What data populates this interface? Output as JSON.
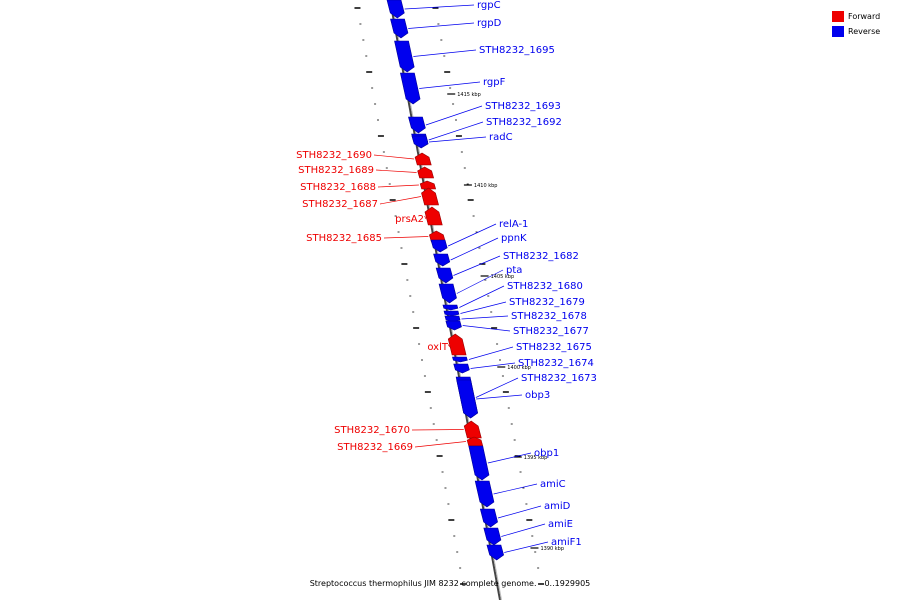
{
  "caption": "Streptococcus thermophilus JIM 8232 complete genome. - 0..1929905",
  "legend": {
    "forward": {
      "label": "Forward",
      "color": "#ee0000"
    },
    "reverse": {
      "label": "Reverse",
      "color": "#0000ee"
    }
  },
  "scale_ticks": [
    "1415 kbp",
    "1410 kbp",
    "1405 kbp",
    "1400 kbp",
    "1395 kbp",
    "1390 kbp"
  ],
  "genes": [
    {
      "name": "rgpC",
      "strand": "reverse"
    },
    {
      "name": "rgpD",
      "strand": "reverse"
    },
    {
      "name": "STH8232_1695",
      "strand": "reverse"
    },
    {
      "name": "rgpF",
      "strand": "reverse"
    },
    {
      "name": "STH8232_1693",
      "strand": "reverse"
    },
    {
      "name": "STH8232_1692",
      "strand": "reverse"
    },
    {
      "name": "radC",
      "strand": "reverse"
    },
    {
      "name": "STH8232_1690",
      "strand": "forward"
    },
    {
      "name": "STH8232_1689",
      "strand": "forward"
    },
    {
      "name": "STH8232_1688",
      "strand": "forward"
    },
    {
      "name": "STH8232_1687",
      "strand": "forward"
    },
    {
      "name": "prsA2",
      "strand": "forward"
    },
    {
      "name": "STH8232_1685",
      "strand": "forward"
    },
    {
      "name": "relA-1",
      "strand": "reverse"
    },
    {
      "name": "ppnK",
      "strand": "reverse"
    },
    {
      "name": "STH8232_1682",
      "strand": "reverse"
    },
    {
      "name": "pta",
      "strand": "reverse"
    },
    {
      "name": "STH8232_1680",
      "strand": "reverse"
    },
    {
      "name": "STH8232_1679",
      "strand": "reverse"
    },
    {
      "name": "STH8232_1678",
      "strand": "reverse"
    },
    {
      "name": "STH8232_1677",
      "strand": "reverse"
    },
    {
      "name": "oxlT",
      "strand": "forward"
    },
    {
      "name": "STH8232_1675",
      "strand": "reverse"
    },
    {
      "name": "STH8232_1674",
      "strand": "reverse"
    },
    {
      "name": "STH8232_1673",
      "strand": "reverse"
    },
    {
      "name": "obp3",
      "strand": "reverse"
    },
    {
      "name": "STH8232_1670",
      "strand": "forward"
    },
    {
      "name": "STH8232_1669",
      "strand": "forward"
    },
    {
      "name": "obp1",
      "strand": "reverse"
    },
    {
      "name": "amiC",
      "strand": "reverse"
    },
    {
      "name": "amiD",
      "strand": "reverse"
    },
    {
      "name": "amiE",
      "strand": "reverse"
    },
    {
      "name": "amiF1",
      "strand": "reverse"
    }
  ]
}
